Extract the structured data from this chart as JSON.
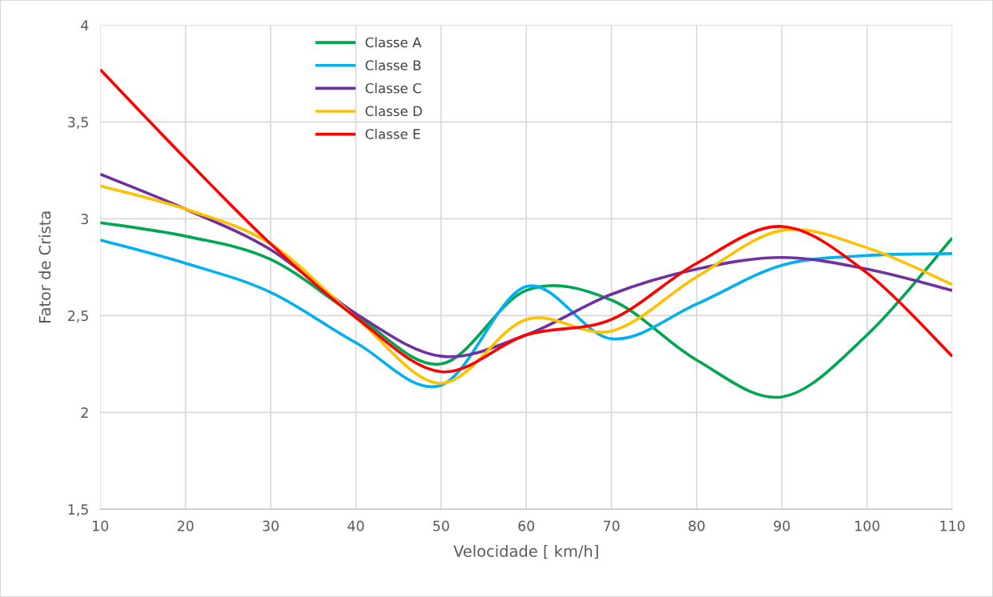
{
  "chart_data": {
    "type": "line",
    "xlabel": "Velocidade [ km/h]",
    "ylabel": "Fator de Crista",
    "x": [
      10,
      20,
      30,
      40,
      50,
      60,
      70,
      80,
      90,
      100,
      110
    ],
    "series": [
      {
        "name": "Classe A",
        "color": "#00a651",
        "values": [
          2.98,
          2.91,
          2.79,
          2.5,
          2.25,
          2.63,
          2.58,
          2.27,
          2.08,
          2.4,
          2.9
        ]
      },
      {
        "name": "Classe B",
        "color": "#00b0f0",
        "values": [
          2.89,
          2.77,
          2.62,
          2.36,
          2.14,
          2.65,
          2.38,
          2.56,
          2.76,
          2.81,
          2.82
        ]
      },
      {
        "name": "Classe C",
        "color": "#7030a0",
        "values": [
          3.23,
          3.05,
          2.84,
          2.51,
          2.29,
          2.4,
          2.61,
          2.74,
          2.8,
          2.74,
          2.63
        ]
      },
      {
        "name": "Classe D",
        "color": "#ffc000",
        "values": [
          3.17,
          3.05,
          2.87,
          2.49,
          2.15,
          2.48,
          2.42,
          2.7,
          2.94,
          2.85,
          2.66
        ]
      },
      {
        "name": "Classe E",
        "color": "#ff0000",
        "values": [
          3.77,
          3.31,
          2.87,
          2.49,
          2.21,
          2.4,
          2.48,
          2.77,
          2.96,
          2.72,
          2.29
        ]
      }
    ],
    "xlim": [
      10,
      110
    ],
    "xticks": [
      10,
      20,
      30,
      40,
      50,
      60,
      70,
      80,
      90,
      100,
      110
    ],
    "ylim": [
      1.5,
      4
    ],
    "yticks": [
      {
        "value": 1.5,
        "label": "1,5"
      },
      2,
      {
        "value": 2.5,
        "label": "2,5"
      },
      3,
      {
        "value": 3.5,
        "label": "3,5"
      },
      4
    ],
    "grid": true,
    "legend": "top left",
    "marker": "none",
    "line_style": "solid"
  }
}
